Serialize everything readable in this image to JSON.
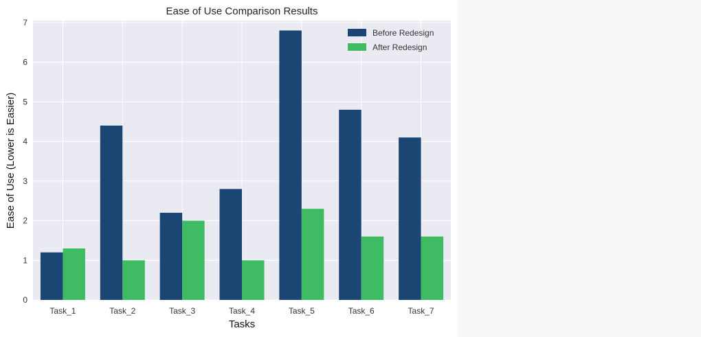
{
  "chart_data": {
    "type": "bar",
    "title": "Ease of Use Comparison Results",
    "xlabel": "Tasks",
    "ylabel": "Ease of Use (Lower is Easier)",
    "categories": [
      "Task_1",
      "Task_2",
      "Task_3",
      "Task_4",
      "Task_5",
      "Task_6",
      "Task_7"
    ],
    "series": [
      {
        "name": "Before Redesign",
        "color": "#1b4674",
        "values": [
          1.2,
          4.4,
          2.2,
          2.8,
          6.8,
          4.8,
          4.1
        ]
      },
      {
        "name": "After Redesign",
        "color": "#3fbb63",
        "values": [
          1.3,
          1.0,
          2.0,
          1.0,
          2.3,
          1.6,
          1.6
        ]
      }
    ],
    "ylim": [
      0,
      7.05
    ],
    "yticks": [
      0,
      1,
      2,
      3,
      4,
      5,
      6,
      7
    ],
    "grid": true,
    "legend_position": "top-right",
    "background_color": "#eaeaf2"
  }
}
